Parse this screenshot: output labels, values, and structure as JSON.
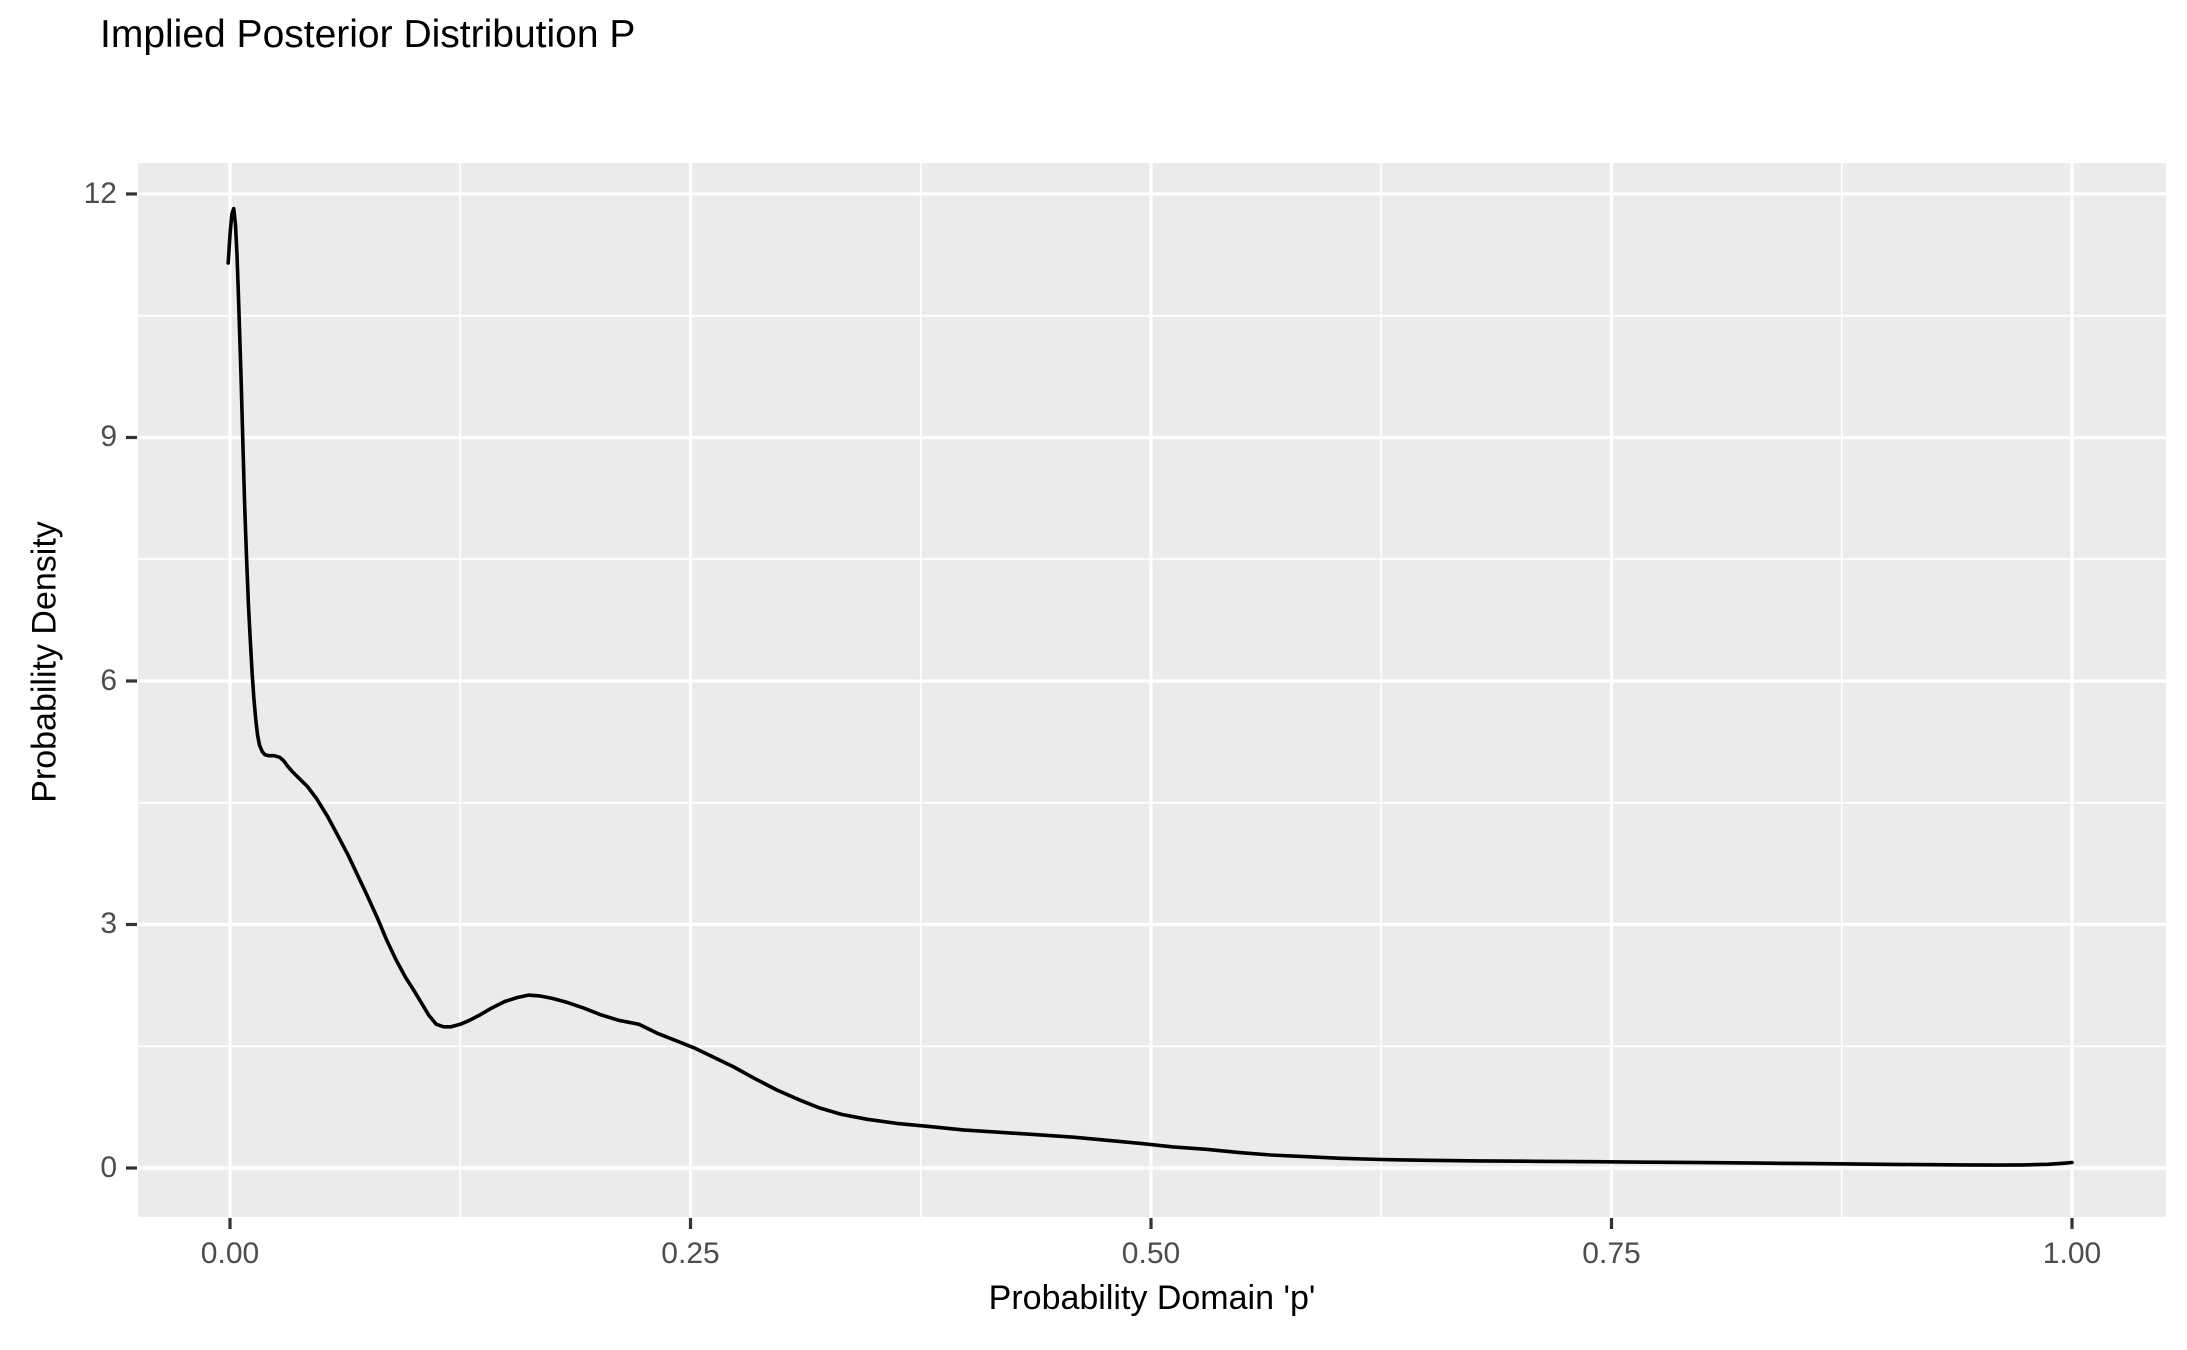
{
  "title": "Implied Posterior Distribution P",
  "axes": {
    "x": {
      "label": "Probability Domain 'p'",
      "ticks": [
        {
          "value": 0.0,
          "label": "0.00"
        },
        {
          "value": 0.25,
          "label": "0.25"
        },
        {
          "value": 0.5,
          "label": "0.50"
        },
        {
          "value": 0.75,
          "label": "0.75"
        },
        {
          "value": 1.0,
          "label": "1.00"
        }
      ],
      "minor_ticks": [
        0.125,
        0.375,
        0.625,
        0.875
      ]
    },
    "y": {
      "label": "Probability Density",
      "ticks": [
        {
          "value": 0,
          "label": "0"
        },
        {
          "value": 3,
          "label": "3"
        },
        {
          "value": 6,
          "label": "6"
        },
        {
          "value": 9,
          "label": "9"
        },
        {
          "value": 12,
          "label": "12"
        }
      ],
      "minor_ticks": [
        1.5,
        4.5,
        7.5,
        10.5
      ]
    }
  },
  "colors": {
    "page_background": "#FFFFFF",
    "panel_background": "#EBEBEB",
    "grid_major": "#FFFFFF",
    "grid_minor": "#FFFFFF",
    "curve": "#000000",
    "tick_mark": "#333333",
    "tick_label": "#4D4D4D",
    "text": "#000000"
  },
  "chart_data": {
    "type": "line",
    "subtype": "kernel-density",
    "title": "Implied Posterior Distribution P",
    "xlabel": "Probability Domain 'p'",
    "ylabel": "Probability Density",
    "xlim": [
      0,
      1
    ],
    "ylim": [
      0,
      12
    ],
    "grid": "major-and-minor-white-on-grey",
    "legend": "none",
    "peak": {
      "x": 0.002,
      "y": 11.82
    },
    "local_min": {
      "x": 0.114,
      "y": 1.74
    },
    "local_max": {
      "x": 0.162,
      "y": 2.13
    },
    "points": [
      [
        -0.001,
        11.15
      ],
      [
        0.0,
        11.5
      ],
      [
        0.001,
        11.75
      ],
      [
        0.002,
        11.82
      ],
      [
        0.003,
        11.62
      ],
      [
        0.0038,
        11.25
      ],
      [
        0.0045,
        10.8
      ],
      [
        0.0052,
        10.3
      ],
      [
        0.006,
        9.72
      ],
      [
        0.007,
        8.92
      ],
      [
        0.008,
        8.15
      ],
      [
        0.009,
        7.5
      ],
      [
        0.01,
        6.95
      ],
      [
        0.011,
        6.5
      ],
      [
        0.012,
        6.1
      ],
      [
        0.013,
        5.78
      ],
      [
        0.014,
        5.52
      ],
      [
        0.015,
        5.33
      ],
      [
        0.016,
        5.21
      ],
      [
        0.0175,
        5.13
      ],
      [
        0.019,
        5.09
      ],
      [
        0.021,
        5.08
      ],
      [
        0.024,
        5.08
      ],
      [
        0.027,
        5.06
      ],
      [
        0.029,
        5.02
      ],
      [
        0.031,
        4.96
      ],
      [
        0.034,
        4.88
      ],
      [
        0.038,
        4.79
      ],
      [
        0.042,
        4.7
      ],
      [
        0.047,
        4.55
      ],
      [
        0.053,
        4.33
      ],
      [
        0.058,
        4.12
      ],
      [
        0.064,
        3.86
      ],
      [
        0.069,
        3.62
      ],
      [
        0.074,
        3.38
      ],
      [
        0.08,
        3.08
      ],
      [
        0.085,
        2.81
      ],
      [
        0.09,
        2.57
      ],
      [
        0.095,
        2.36
      ],
      [
        0.1,
        2.18
      ],
      [
        0.104,
        2.03
      ],
      [
        0.108,
        1.88
      ],
      [
        0.112,
        1.77
      ],
      [
        0.116,
        1.74
      ],
      [
        0.12,
        1.74
      ],
      [
        0.125,
        1.77
      ],
      [
        0.13,
        1.82
      ],
      [
        0.136,
        1.89
      ],
      [
        0.142,
        1.97
      ],
      [
        0.149,
        2.05
      ],
      [
        0.156,
        2.1
      ],
      [
        0.162,
        2.13
      ],
      [
        0.168,
        2.12
      ],
      [
        0.175,
        2.09
      ],
      [
        0.183,
        2.04
      ],
      [
        0.192,
        1.97
      ],
      [
        0.201,
        1.89
      ],
      [
        0.211,
        1.82
      ],
      [
        0.222,
        1.77
      ],
      [
        0.232,
        1.66
      ],
      [
        0.242,
        1.57
      ],
      [
        0.252,
        1.48
      ],
      [
        0.262,
        1.37
      ],
      [
        0.273,
        1.25
      ],
      [
        0.285,
        1.1
      ],
      [
        0.297,
        0.96
      ],
      [
        0.309,
        0.84
      ],
      [
        0.32,
        0.74
      ],
      [
        0.332,
        0.66
      ],
      [
        0.346,
        0.6
      ],
      [
        0.362,
        0.55
      ],
      [
        0.38,
        0.51
      ],
      [
        0.398,
        0.47
      ],
      [
        0.418,
        0.44
      ],
      [
        0.438,
        0.41
      ],
      [
        0.458,
        0.38
      ],
      [
        0.477,
        0.34
      ],
      [
        0.495,
        0.3
      ],
      [
        0.512,
        0.26
      ],
      [
        0.53,
        0.23
      ],
      [
        0.548,
        0.19
      ],
      [
        0.565,
        0.16
      ],
      [
        0.583,
        0.14
      ],
      [
        0.603,
        0.12
      ],
      [
        0.625,
        0.105
      ],
      [
        0.65,
        0.095
      ],
      [
        0.678,
        0.088
      ],
      [
        0.708,
        0.082
      ],
      [
        0.74,
        0.077
      ],
      [
        0.77,
        0.072
      ],
      [
        0.8,
        0.066
      ],
      [
        0.83,
        0.06
      ],
      [
        0.86,
        0.054
      ],
      [
        0.89,
        0.047
      ],
      [
        0.915,
        0.042
      ],
      [
        0.94,
        0.038
      ],
      [
        0.96,
        0.036
      ],
      [
        0.975,
        0.038
      ],
      [
        0.987,
        0.045
      ],
      [
        0.995,
        0.058
      ],
      [
        1.0,
        0.068
      ]
    ]
  }
}
